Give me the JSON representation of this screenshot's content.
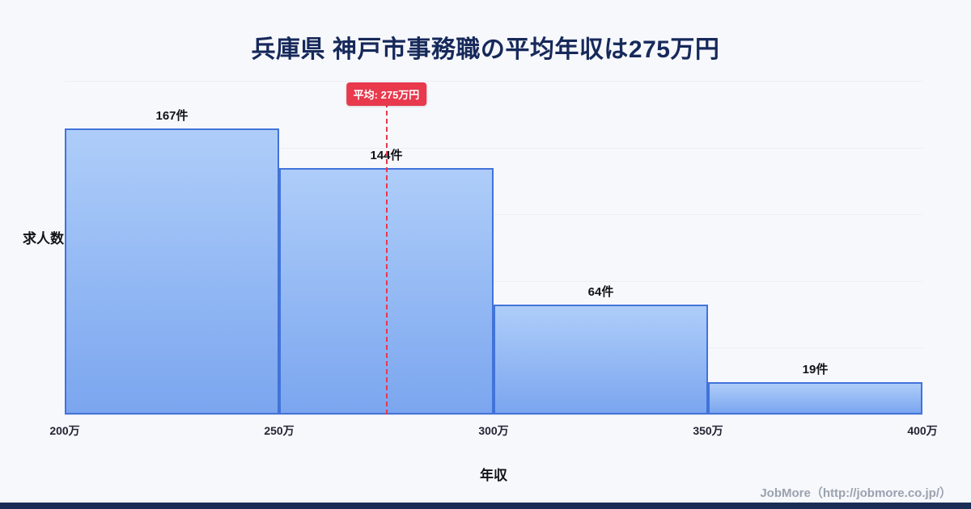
{
  "title": "兵庫県 神戸市事務職の平均年収は275万円",
  "chart_data": {
    "type": "bar",
    "title": "兵庫県 神戸市事務職の平均年収は275万円",
    "categories": [
      "200万-250万",
      "250万-300万",
      "300万-350万",
      "350万-400万"
    ],
    "values": [
      167,
      144,
      64,
      19
    ],
    "value_labels": [
      "167件",
      "144件",
      "64件",
      "19件"
    ],
    "xlabel": "年収",
    "ylabel": "求人数",
    "x_ticks": [
      "200万",
      "250万",
      "300万",
      "350万",
      "400万"
    ],
    "x_range": [
      200,
      400
    ],
    "ylim": [
      0,
      195
    ],
    "grid": true,
    "legend": "none",
    "mean": {
      "value": 275,
      "label": "平均: 275万円"
    }
  },
  "footer": {
    "credit": "JobMore（http://jobmore.co.jp/）"
  },
  "colors": {
    "background": "#f7f8fc",
    "title_navy": "#16295a",
    "bar_fill_top": "#aecdf9",
    "bar_fill_bottom": "#7ba6ef",
    "bar_border": "#4273da",
    "mean_red": "#e8394d",
    "footer_gray": "#9aa2ae",
    "bottom_strip_navy": "#1b2c55"
  }
}
